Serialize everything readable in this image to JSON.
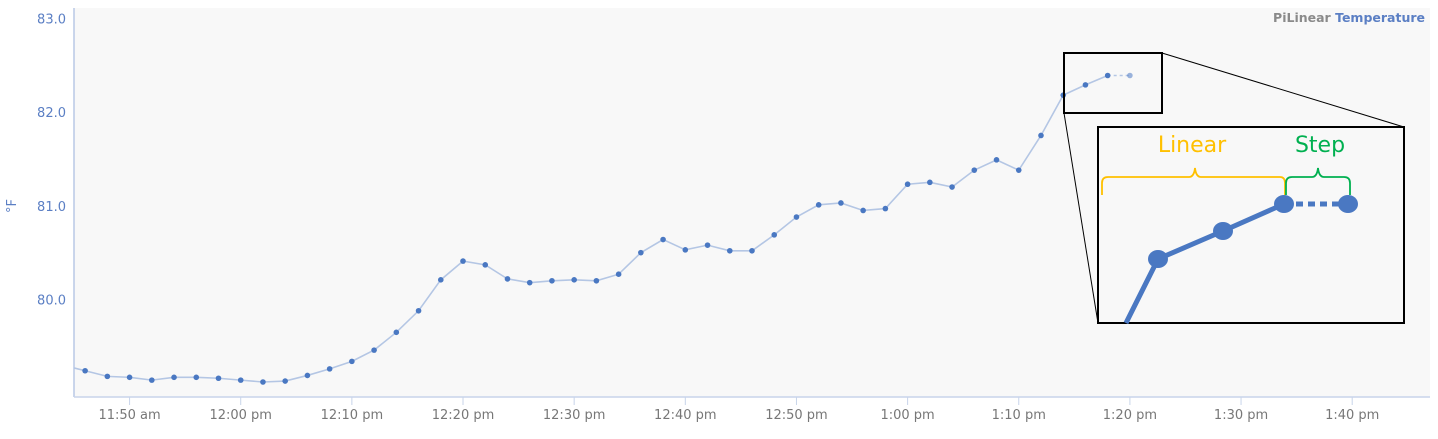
{
  "chart_data": {
    "type": "line",
    "title_prefix": "PiLinear",
    "title": "Temperature",
    "ylabel": "°F",
    "xlabel": "",
    "xlim": [
      "11:45",
      "13:47"
    ],
    "ylim": [
      78.96,
      83.11
    ],
    "grid": false,
    "yticks": [
      {
        "value": 80.0,
        "label": "80.0"
      },
      {
        "value": 81.0,
        "label": "81.0"
      },
      {
        "value": 82.0,
        "label": "82.0"
      },
      {
        "value": 83.0,
        "label": "83.0"
      }
    ],
    "xticks": [
      {
        "time": "11:50",
        "label": "11:50 am"
      },
      {
        "time": "12:00",
        "label": "12:00 pm"
      },
      {
        "time": "12:10",
        "label": "12:10 pm"
      },
      {
        "time": "12:20",
        "label": "12:20 pm"
      },
      {
        "time": "12:30",
        "label": "12:30 pm"
      },
      {
        "time": "12:40",
        "label": "12:40 pm"
      },
      {
        "time": "12:50",
        "label": "12:50 pm"
      },
      {
        "time": "13:00",
        "label": "1:00 pm"
      },
      {
        "time": "13:10",
        "label": "1:10 pm"
      },
      {
        "time": "13:20",
        "label": "1:20 pm"
      },
      {
        "time": "13:30",
        "label": "1:30 pm"
      },
      {
        "time": "13:40",
        "label": "1:40 pm"
      }
    ],
    "series": [
      {
        "color": "#4a78c2",
        "line_color": "#b4c6e4",
        "points": [
          [
            "11:46",
            79.24
          ],
          [
            "11:48",
            79.18
          ],
          [
            "11:50",
            79.17
          ],
          [
            "11:52",
            79.14
          ],
          [
            "11:54",
            79.17
          ],
          [
            "11:56",
            79.17
          ],
          [
            "11:58",
            79.16
          ],
          [
            "12:00",
            79.14
          ],
          [
            "12:02",
            79.12
          ],
          [
            "12:04",
            79.13
          ],
          [
            "12:06",
            79.19
          ],
          [
            "12:08",
            79.26
          ],
          [
            "12:10",
            79.34
          ],
          [
            "12:12",
            79.46
          ],
          [
            "12:14",
            79.65
          ],
          [
            "12:16",
            79.88
          ],
          [
            "12:18",
            80.21
          ],
          [
            "12:20",
            80.41
          ],
          [
            "12:22",
            80.37
          ],
          [
            "12:24",
            80.22
          ],
          [
            "12:26",
            80.18
          ],
          [
            "12:28",
            80.2
          ],
          [
            "12:30",
            80.21
          ],
          [
            "12:32",
            80.2
          ],
          [
            "12:34",
            80.27
          ],
          [
            "12:36",
            80.5
          ],
          [
            "12:38",
            80.64
          ],
          [
            "12:40",
            80.53
          ],
          [
            "12:42",
            80.58
          ],
          [
            "12:44",
            80.52
          ],
          [
            "12:46",
            80.52
          ],
          [
            "12:48",
            80.69
          ],
          [
            "12:50",
            80.88
          ],
          [
            "12:52",
            81.01
          ],
          [
            "12:54",
            81.03
          ],
          [
            "12:56",
            80.95
          ],
          [
            "12:58",
            80.97
          ],
          [
            "13:00",
            81.23
          ],
          [
            "13:02",
            81.25
          ],
          [
            "13:04",
            81.2
          ],
          [
            "13:06",
            81.38
          ],
          [
            "13:08",
            81.49
          ],
          [
            "13:10",
            81.38
          ],
          [
            "13:12",
            81.75
          ],
          [
            "13:14",
            82.18
          ],
          [
            "13:16",
            82.29
          ],
          [
            "13:18",
            82.39
          ]
        ],
        "step_point": [
          "13:20",
          82.39
        ]
      }
    ],
    "annotations": {
      "linear_label": "Linear",
      "linear_color": "#FFC000",
      "step_label": "Step",
      "step_color": "#00B050"
    }
  }
}
